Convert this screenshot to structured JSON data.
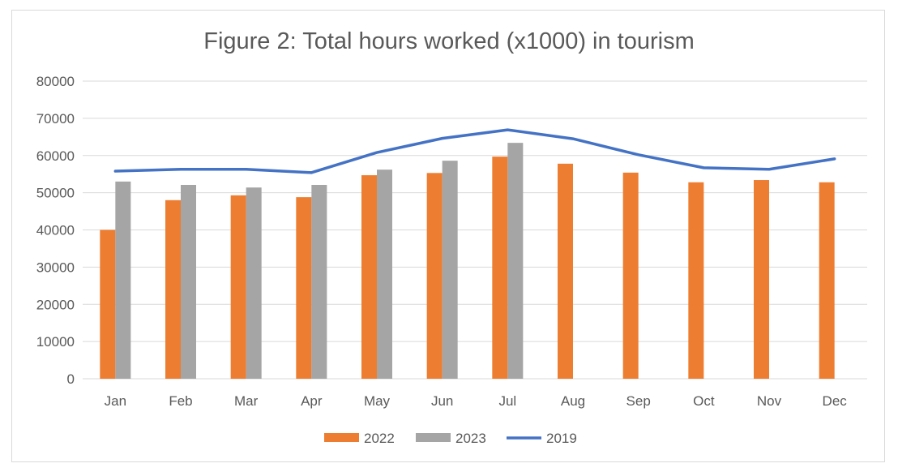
{
  "chart_data": {
    "type": "bar",
    "title": "Figure 2: Total hours worked (x1000) in tourism",
    "categories": [
      "Jan",
      "Feb",
      "Mar",
      "Apr",
      "May",
      "Jun",
      "Jul",
      "Aug",
      "Sep",
      "Oct",
      "Nov",
      "Dec"
    ],
    "ylim": [
      0,
      80000
    ],
    "yticks": [
      0,
      10000,
      20000,
      30000,
      40000,
      50000,
      60000,
      70000,
      80000
    ],
    "grid": true,
    "legend_position": "bottom",
    "series": [
      {
        "name": "2022",
        "type": "bar",
        "color": "#ed7d31",
        "values": [
          40000,
          48000,
          49300,
          48800,
          54700,
          55300,
          59700,
          57800,
          55400,
          52800,
          53400,
          52800
        ]
      },
      {
        "name": "2023",
        "type": "bar",
        "color": "#a5a5a5",
        "values": [
          53000,
          52100,
          51400,
          52100,
          56200,
          58600,
          63400,
          null,
          null,
          null,
          null,
          null
        ]
      },
      {
        "name": "2019",
        "type": "line",
        "color": "#4472c4",
        "values": [
          55800,
          56300,
          56300,
          55400,
          60800,
          64600,
          66900,
          64500,
          60200,
          56700,
          56300,
          59100
        ]
      }
    ]
  }
}
